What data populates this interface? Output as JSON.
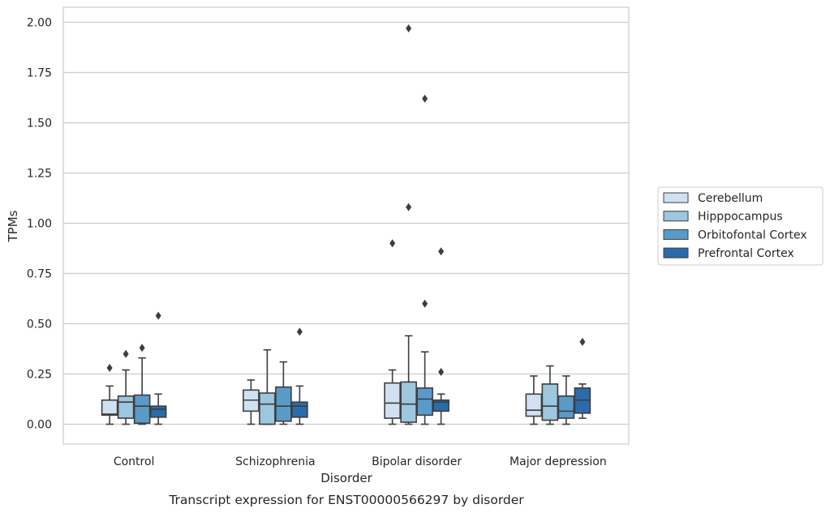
{
  "chart_data": {
    "type": "boxplot",
    "title": "Transcript expression for ENST00000566297 by disorder",
    "xlabel": "Disorder",
    "ylabel": "TPMs",
    "ylim": [
      -0.1,
      2.07
    ],
    "yticks": [
      0.0,
      0.25,
      0.5,
      0.75,
      1.0,
      1.25,
      1.5,
      1.75,
      2.0
    ],
    "ytick_labels": [
      "0.00",
      "0.25",
      "0.50",
      "0.75",
      "1.00",
      "1.25",
      "1.50",
      "1.75",
      "2.00"
    ],
    "grid": "horizontal",
    "legend_position": "right",
    "categories": [
      "Control",
      "Schizophrenia",
      "Bipolar disorder",
      "Major depression"
    ],
    "series": [
      {
        "name": "Cerebellum",
        "color": "#d0e1f1",
        "boxes": [
          {
            "whislo": 0.0,
            "q1": 0.045,
            "med": 0.05,
            "q3": 0.12,
            "whishi": 0.19,
            "fliers": [
              0.28
            ]
          },
          {
            "whislo": 0.0,
            "q1": 0.065,
            "med": 0.12,
            "q3": 0.17,
            "whishi": 0.22,
            "fliers": []
          },
          {
            "whislo": 0.0,
            "q1": 0.03,
            "med": 0.105,
            "q3": 0.205,
            "whishi": 0.27,
            "fliers": [
              0.9
            ]
          },
          {
            "whislo": 0.0,
            "q1": 0.04,
            "med": 0.07,
            "q3": 0.15,
            "whishi": 0.24,
            "fliers": []
          }
        ]
      },
      {
        "name": "Hipppocampus",
        "color": "#9dc6df",
        "boxes": [
          {
            "whislo": 0.0,
            "q1": 0.03,
            "med": 0.11,
            "q3": 0.14,
            "whishi": 0.27,
            "fliers": [
              0.35
            ]
          },
          {
            "whislo": 0.0,
            "q1": 0.0,
            "med": 0.1,
            "q3": 0.155,
            "whishi": 0.37,
            "fliers": []
          },
          {
            "whislo": 0.0,
            "q1": 0.01,
            "med": 0.1,
            "q3": 0.21,
            "whishi": 0.44,
            "fliers": [
              1.08,
              1.97
            ]
          },
          {
            "whislo": 0.0,
            "q1": 0.02,
            "med": 0.09,
            "q3": 0.2,
            "whishi": 0.29,
            "fliers": []
          }
        ]
      },
      {
        "name": "Orbitofontal Cortex",
        "color": "#5a9ac8",
        "boxes": [
          {
            "whislo": 0.0,
            "q1": 0.005,
            "med": 0.09,
            "q3": 0.145,
            "whishi": 0.33,
            "fliers": [
              0.38
            ]
          },
          {
            "whislo": 0.0,
            "q1": 0.015,
            "med": 0.09,
            "q3": 0.185,
            "whishi": 0.31,
            "fliers": []
          },
          {
            "whislo": 0.0,
            "q1": 0.045,
            "med": 0.125,
            "q3": 0.18,
            "whishi": 0.36,
            "fliers": [
              0.6,
              1.62
            ]
          },
          {
            "whislo": 0.0,
            "q1": 0.03,
            "med": 0.065,
            "q3": 0.14,
            "whishi": 0.24,
            "fliers": []
          }
        ]
      },
      {
        "name": "Prefrontal Cortex",
        "color": "#2a6bac",
        "boxes": [
          {
            "whislo": 0.0,
            "q1": 0.035,
            "med": 0.075,
            "q3": 0.09,
            "whishi": 0.15,
            "fliers": [
              0.54
            ]
          },
          {
            "whislo": 0.0,
            "q1": 0.035,
            "med": 0.09,
            "q3": 0.11,
            "whishi": 0.19,
            "fliers": [
              0.46
            ]
          },
          {
            "whislo": 0.0,
            "q1": 0.065,
            "med": 0.11,
            "q3": 0.12,
            "whishi": 0.15,
            "fliers": [
              0.26,
              0.86
            ]
          },
          {
            "whislo": 0.03,
            "q1": 0.055,
            "med": 0.12,
            "q3": 0.18,
            "whishi": 0.2,
            "fliers": [
              0.41
            ]
          }
        ]
      }
    ]
  }
}
